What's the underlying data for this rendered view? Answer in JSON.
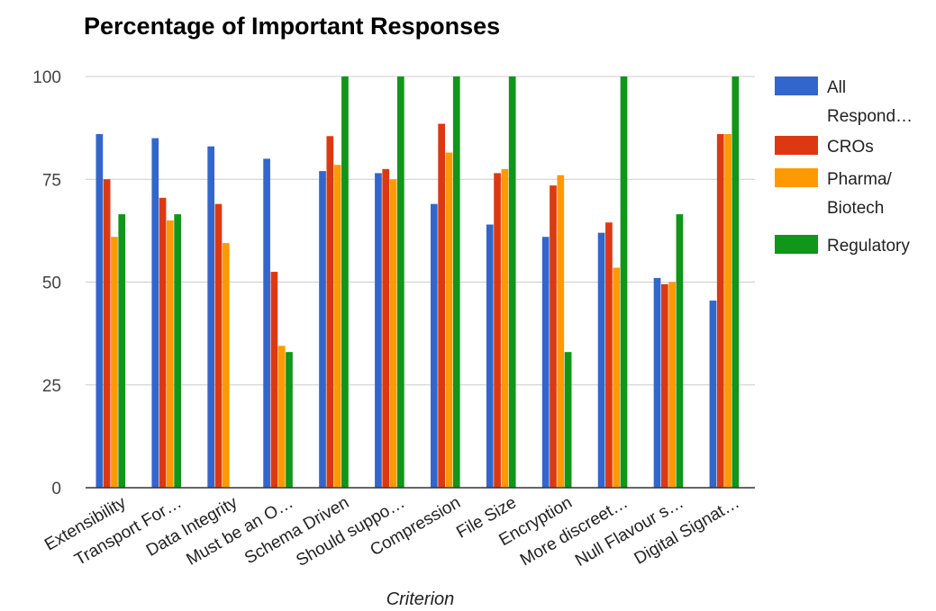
{
  "chart_data": {
    "type": "bar",
    "title": "Percentage of Important Responses",
    "xlabel": "Criterion",
    "ylabel": "",
    "ylim": [
      0,
      100
    ],
    "yticks": [
      0,
      25,
      50,
      75,
      100
    ],
    "grid": true,
    "legend_position": "right",
    "categories": [
      "Extensibility",
      "Transport For…",
      "Data Integrity",
      "Must be an O…",
      "Schema Driven",
      "Should suppo…",
      "Compression",
      "File Size",
      "Encryption",
      "More discreet…",
      "Null Flavour s…",
      "Digital Signat…"
    ],
    "series": [
      {
        "name": "All Respond…",
        "color": "#3366cc",
        "values": [
          86,
          85,
          83,
          80,
          77,
          76.5,
          69,
          64,
          61,
          62,
          51,
          45.5
        ]
      },
      {
        "name": "CROs",
        "color": "#dc3912",
        "values": [
          75,
          70.5,
          69,
          52.5,
          85.5,
          77.5,
          88.5,
          76.5,
          73.5,
          64.5,
          49.5,
          86
        ]
      },
      {
        "name": "Pharma/ Biotech",
        "color": "#ff9900",
        "values": [
          61,
          65,
          59.5,
          34.5,
          78.5,
          75,
          81.5,
          77.5,
          76,
          53.5,
          50,
          86
        ]
      },
      {
        "name": "Regulatory",
        "color": "#109618",
        "values": [
          66.5,
          66.5,
          0,
          33,
          100,
          100,
          100,
          100,
          33,
          100,
          66.5,
          100
        ]
      }
    ]
  },
  "legend_lines": [
    [
      "All",
      "Respond…"
    ],
    [
      "CROs"
    ],
    [
      "Pharma/",
      "Biotech"
    ],
    [
      "Regulatory"
    ]
  ]
}
